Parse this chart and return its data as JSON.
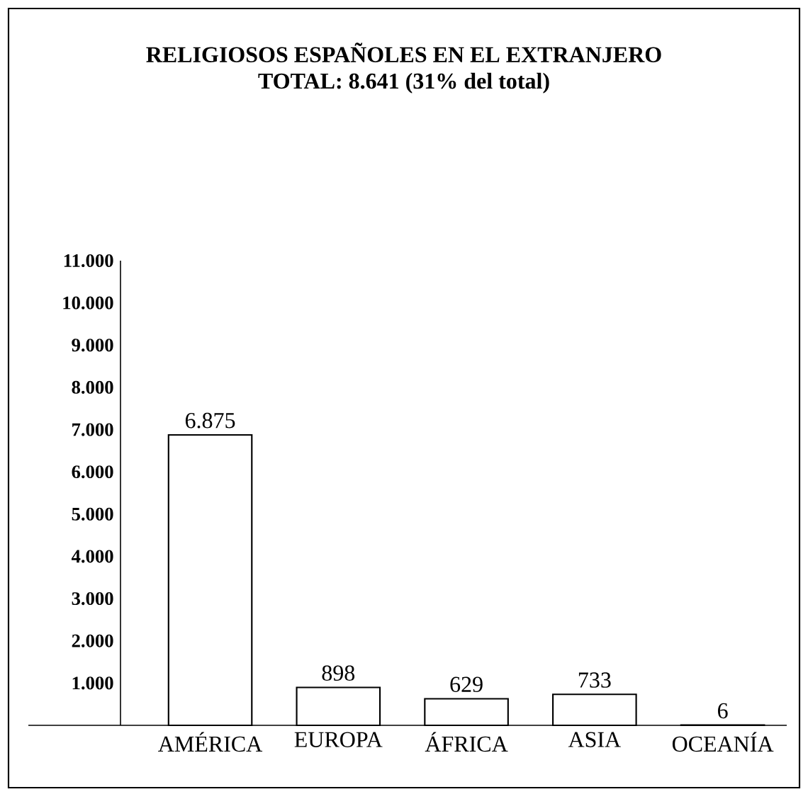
{
  "chart_data": {
    "type": "bar",
    "title": "RELIGIOSOS ESPAÑOLES EN EL EXTRANJERO",
    "subtitle": "TOTAL: 8.641 (31% del total)",
    "categories": [
      "AMÉRICA",
      "EUROPA",
      "ÁFRICA",
      "ASIA",
      "OCEANÍA"
    ],
    "values": [
      6875,
      898,
      629,
      733,
      6
    ],
    "value_labels": [
      "6.875",
      "898",
      "629",
      "733",
      "6"
    ],
    "color": "#ffffff",
    "ylim": [
      0,
      11000
    ],
    "yticks": [
      {
        "value": 1000,
        "label": "1.000"
      },
      {
        "value": 2000,
        "label": "2.000"
      },
      {
        "value": 3000,
        "label": "3.000"
      },
      {
        "value": 4000,
        "label": "4.000"
      },
      {
        "value": 5000,
        "label": "5.000"
      },
      {
        "value": 6000,
        "label": "6.000"
      },
      {
        "value": 7000,
        "label": "7.000"
      },
      {
        "value": 8000,
        "label": "8.000"
      },
      {
        "value": 9000,
        "label": "9.000"
      },
      {
        "value": 10000,
        "label": "10.000"
      },
      {
        "value": 11000,
        "label": "11.000"
      }
    ],
    "grid": false
  }
}
